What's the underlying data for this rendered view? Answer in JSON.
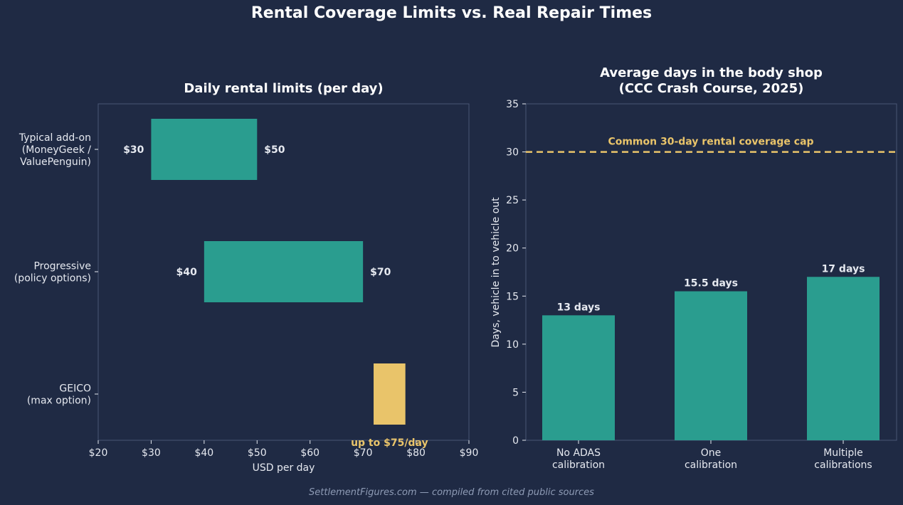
{
  "title": "Rental Coverage Limits vs. Real Repair Times",
  "footer": "SettlementFigures.com — compiled from cited public sources",
  "colors": {
    "background": "#1f2a44",
    "teal": "#2a9d8f",
    "gold": "#e9c46a",
    "text": "#e6e9f0",
    "axis": "#4a5675",
    "footer": "#8e9bb5"
  },
  "chart_data": [
    {
      "type": "bar",
      "orientation": "horizontal-range",
      "title": "Daily rental limits (per day)",
      "xlabel": "USD per day",
      "ylabel": "",
      "xlim": [
        20,
        90
      ],
      "xticks": [
        {
          "value": 20,
          "label": "$20"
        },
        {
          "value": 30,
          "label": "$30"
        },
        {
          "value": 40,
          "label": "$40"
        },
        {
          "value": 50,
          "label": "$50"
        },
        {
          "value": 60,
          "label": "$60"
        },
        {
          "value": 70,
          "label": "$70"
        },
        {
          "value": 80,
          "label": "$80"
        },
        {
          "value": 90,
          "label": "$90"
        }
      ],
      "categories": [
        [
          "Typical add-on",
          "(MoneyGeek /",
          "ValuePenguin)"
        ],
        [
          "Progressive",
          "(policy options)"
        ],
        [
          "GEICO",
          "(max option)"
        ]
      ],
      "bars": [
        {
          "low": 30,
          "high": 50,
          "low_label": "$30",
          "high_label": "$50",
          "color": "#2a9d8f"
        },
        {
          "low": 40,
          "high": 70,
          "low_label": "$40",
          "high_label": "$70",
          "color": "#2a9d8f"
        },
        {
          "low": 72,
          "high": 78,
          "center": 75,
          "note": "up to $75/day",
          "color": "#e9c46a"
        }
      ],
      "grid": false
    },
    {
      "type": "bar",
      "title": [
        "Average days in the body shop",
        "(CCC Crash Course, 2025)"
      ],
      "xlabel": "",
      "ylabel": "Days, vehicle in to vehicle out",
      "ylim": [
        0,
        35
      ],
      "yticks": [
        0,
        5,
        10,
        15,
        20,
        25,
        30,
        35
      ],
      "categories": [
        [
          "No ADAS",
          "calibration"
        ],
        [
          "One",
          "calibration"
        ],
        [
          "Multiple",
          "calibrations"
        ]
      ],
      "values": [
        13,
        15.5,
        17
      ],
      "value_labels": [
        "13 days",
        "15.5 days",
        "17 days"
      ],
      "reference_line": {
        "value": 30,
        "label": "Common 30-day rental coverage cap",
        "color": "#e9c46a",
        "style": "dashed"
      },
      "grid": false
    }
  ]
}
